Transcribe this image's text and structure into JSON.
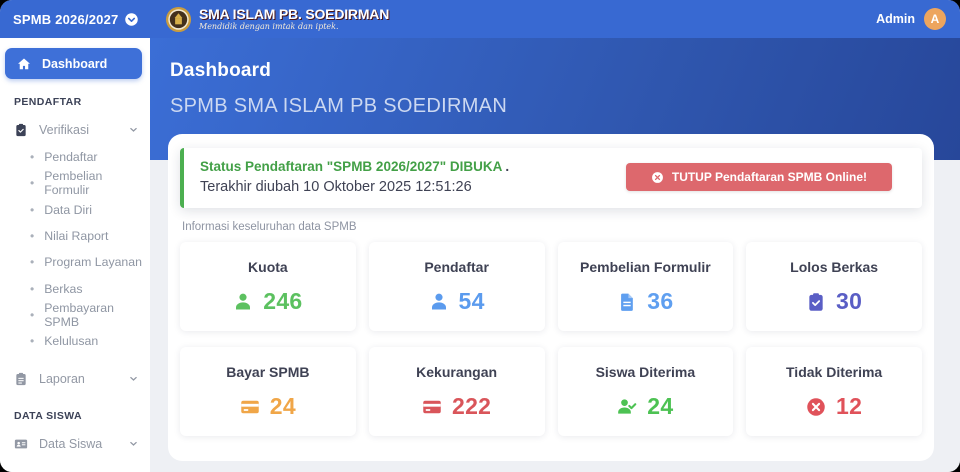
{
  "topbar": {
    "brand": "SPMB 2026/2027",
    "logo_title": "SMA ISLAM PB. SOEDIRMAN",
    "logo_tagline": "Mendidik dengan imtak dan iptek.",
    "admin_label": "Admin",
    "avatar_letter": "A"
  },
  "sidebar": {
    "dashboard_label": "Dashboard",
    "section_pendaftar": "PENDAFTAR",
    "verifikasi_label": "Verifikasi",
    "verifikasi_children": [
      "Pendaftar",
      "Pembelian Formulir",
      "Data Diri",
      "Nilai Raport",
      "Program Layanan",
      "Berkas",
      "Pembayaran SPMB",
      "Kelulusan"
    ],
    "laporan_label": "Laporan",
    "section_data_siswa": "DATA SISWA",
    "data_siswa_label": "Data Siswa"
  },
  "main": {
    "page_title": "Dashboard",
    "page_subtitle": "SPMB SMA ISLAM PB SOEDIRMAN",
    "status": {
      "line1": "Status Pendaftaran \"SPMB 2026/2027\" DIBUKA",
      "line1_suffix": ".",
      "line2": "Terakhir diubah 10 Oktober 2025 12:51:26",
      "button_label": "TUTUP Pendaftaran SPMB Online!",
      "button_icon": "times-circle-icon"
    },
    "info_label": "Informasi keseluruhan data SPMB",
    "stats": [
      {
        "title": "Kuota",
        "value": "246",
        "icon": "user-icon",
        "color": "#5cc160"
      },
      {
        "title": "Pendaftar",
        "value": "54",
        "icon": "user-icon",
        "color": "#5b9bee"
      },
      {
        "title": "Pembelian Formulir",
        "value": "36",
        "icon": "file-icon",
        "color": "#5f9ff0"
      },
      {
        "title": "Lolos Berkas",
        "value": "30",
        "icon": "clipboard-check-icon",
        "color": "#5a5ec5"
      },
      {
        "title": "Bayar SPMB",
        "value": "24",
        "icon": "credit-card-icon",
        "color": "#f0a648"
      },
      {
        "title": "Kekurangan",
        "value": "222",
        "icon": "credit-card-icon",
        "color": "#d9555a"
      },
      {
        "title": "Siswa Diterima",
        "value": "24",
        "icon": "user-check-icon",
        "color": "#4dc253"
      },
      {
        "title": "Tidak Diterima",
        "value": "12",
        "icon": "times-circle-icon",
        "color": "#e0525a"
      }
    ],
    "colors": {
      "topbar_blue": "#3869d2",
      "hero_blue_start": "#3b6ed6",
      "hero_blue_end": "#27479a",
      "active_item_blue": "#3e70d8",
      "status_green": "#43a047",
      "danger_red": "#dd686d",
      "avatar_orange": "#eda55e"
    }
  }
}
